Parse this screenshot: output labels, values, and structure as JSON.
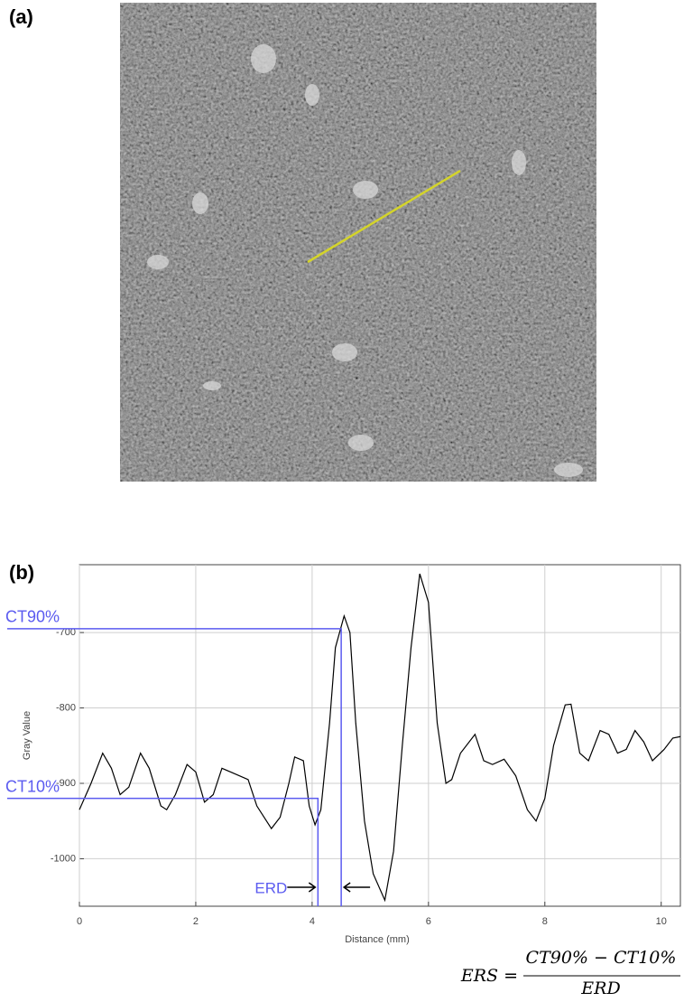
{
  "panel_labels": {
    "a": "(a)",
    "b": "(b)"
  },
  "chart_data": {
    "type": "line",
    "x_label": "Distance (mm)",
    "y_label": "Gray Value",
    "x": [
      0,
      0.2,
      0.4,
      0.55,
      0.7,
      0.85,
      1.05,
      1.2,
      1.4,
      1.5,
      1.65,
      1.85,
      2.0,
      2.15,
      2.3,
      2.45,
      2.6,
      2.9,
      3.05,
      3.3,
      3.45,
      3.6,
      3.7,
      3.85,
      3.95,
      4.05,
      4.15,
      4.3,
      4.4,
      4.55,
      4.65,
      4.75,
      4.9,
      5.05,
      5.25,
      5.4,
      5.55,
      5.7,
      5.85,
      6.0,
      6.15,
      6.3,
      6.4,
      6.55,
      6.8,
      6.95,
      7.1,
      7.3,
      7.5,
      7.7,
      7.85,
      8.0,
      8.15,
      8.35,
      8.45,
      8.6,
      8.75,
      8.95,
      9.1,
      9.25,
      9.4,
      9.55,
      9.7,
      9.85,
      10.05,
      10.2,
      10.33
    ],
    "series": [
      {
        "color": "#000000",
        "values": [
          -935,
          -900,
          -860,
          -880,
          -915,
          -905,
          -860,
          -880,
          -930,
          -935,
          -915,
          -875,
          -885,
          -925,
          -915,
          -880,
          -885,
          -895,
          -930,
          -960,
          -945,
          -900,
          -865,
          -870,
          -930,
          -955,
          -935,
          -820,
          -720,
          -678,
          -700,
          -820,
          -950,
          -1020,
          -1055,
          -990,
          -850,
          -720,
          -622,
          -660,
          -820,
          -900,
          -895,
          -860,
          -835,
          -870,
          -875,
          -868,
          -890,
          -935,
          -950,
          -920,
          -850,
          -796,
          -795,
          -860,
          -870,
          -830,
          -835,
          -860,
          -855,
          -830,
          -845,
          -870,
          -855,
          -840,
          -838
        ]
      }
    ],
    "xlim": [
      0,
      10.33
    ],
    "ylim": [
      -1063,
      -610
    ],
    "xticks": [
      0,
      2,
      4,
      6,
      8,
      10
    ],
    "yticks": [
      -700,
      -800,
      -900,
      -1000
    ],
    "grid": true,
    "annotation_color": "#5b5bf0",
    "annotations": [
      {
        "label": "CT90%",
        "x": 4.5,
        "y": -695
      },
      {
        "label": "CT10%",
        "x": 4.1,
        "y": -920
      }
    ],
    "erd_label": "ERD",
    "formula": {
      "lhs": "ERS =",
      "numerator": "CT90% − CT10%",
      "denominator": "ERD"
    }
  }
}
